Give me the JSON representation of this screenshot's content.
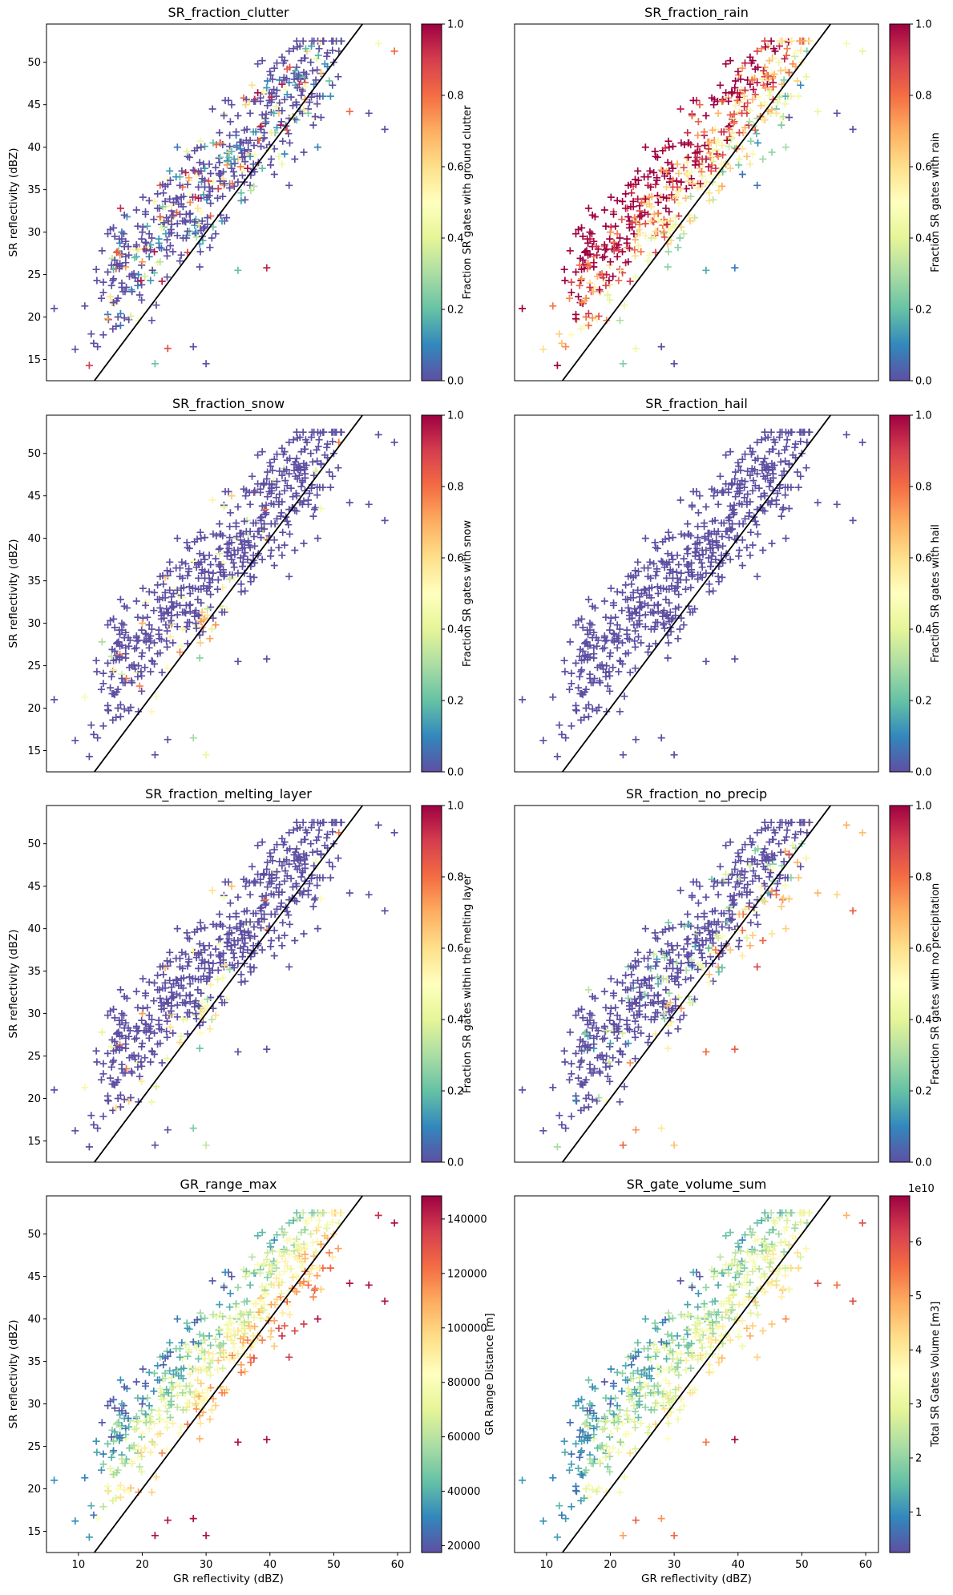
{
  "colormap": [
    "#5e4fa2",
    "#3288bd",
    "#66c2a5",
    "#abdda4",
    "#e6f598",
    "#ffffbf",
    "#fee08b",
    "#fdae61",
    "#f46d43",
    "#d53e4f",
    "#9e0142"
  ],
  "reference_line": {
    "x": [
      0,
      62
    ],
    "y": [
      0,
      62
    ],
    "color": "#000000"
  },
  "chart_data": [
    {
      "type": "scatter",
      "title": "SR_fraction_clutter",
      "xlabel": "",
      "ylabel": "SR reflectivity (dBZ)",
      "xlim": [
        5,
        62
      ],
      "ylim": [
        12.5,
        54.5
      ],
      "xticks": [],
      "xtick_labels": [],
      "yticks": [
        15,
        20,
        25,
        30,
        35,
        40,
        45,
        50
      ],
      "ytick_labels": [
        "15",
        "20",
        "25",
        "30",
        "35",
        "40",
        "45",
        "50"
      ],
      "marker": "+",
      "color_mode": "clutter",
      "colorbar": {
        "label": "Fraction SR gates with ground clutter",
        "vmin": 0,
        "vmax": 1,
        "ticks": [
          0,
          0.2,
          0.4,
          0.6,
          0.8,
          1.0
        ],
        "tick_labels": [
          "0.0",
          "0.2",
          "0.4",
          "0.6",
          "0.8",
          "1.0"
        ],
        "offset_text": ""
      }
    },
    {
      "type": "scatter",
      "title": "SR_fraction_rain",
      "xlabel": "",
      "ylabel": "",
      "xlim": [
        5,
        62
      ],
      "ylim": [
        12.5,
        54.5
      ],
      "xticks": [],
      "xtick_labels": [],
      "yticks": [],
      "ytick_labels": [],
      "marker": "+",
      "color_mode": "rain",
      "colorbar": {
        "label": "Fraction SR gates with rain",
        "vmin": 0,
        "vmax": 1,
        "ticks": [
          0,
          0.2,
          0.4,
          0.6,
          0.8,
          1.0
        ],
        "tick_labels": [
          "0.0",
          "0.2",
          "0.4",
          "0.6",
          "0.8",
          "1.0"
        ],
        "offset_text": ""
      }
    },
    {
      "type": "scatter",
      "title": "SR_fraction_snow",
      "xlabel": "",
      "ylabel": "SR reflectivity (dBZ)",
      "xlim": [
        5,
        62
      ],
      "ylim": [
        12.5,
        54.5
      ],
      "xticks": [],
      "xtick_labels": [],
      "yticks": [
        15,
        20,
        25,
        30,
        35,
        40,
        45,
        50
      ],
      "ytick_labels": [
        "15",
        "20",
        "25",
        "30",
        "35",
        "40",
        "45",
        "50"
      ],
      "marker": "+",
      "color_mode": "snow",
      "colorbar": {
        "label": "Fraction SR gates with snow",
        "vmin": 0,
        "vmax": 1,
        "ticks": [
          0,
          0.2,
          0.4,
          0.6,
          0.8,
          1.0
        ],
        "tick_labels": [
          "0.0",
          "0.2",
          "0.4",
          "0.6",
          "0.8",
          "1.0"
        ],
        "offset_text": ""
      }
    },
    {
      "type": "scatter",
      "title": "SR_fraction_hail",
      "xlabel": "",
      "ylabel": "",
      "xlim": [
        5,
        62
      ],
      "ylim": [
        12.5,
        54.5
      ],
      "xticks": [],
      "xtick_labels": [],
      "yticks": [],
      "ytick_labels": [],
      "marker": "+",
      "color_mode": "hail",
      "colorbar": {
        "label": "Fraction SR gates with hail",
        "vmin": 0,
        "vmax": 1,
        "ticks": [
          0,
          0.2,
          0.4,
          0.6,
          0.8,
          1.0
        ],
        "tick_labels": [
          "0.0",
          "0.2",
          "0.4",
          "0.6",
          "0.8",
          "1.0"
        ],
        "offset_text": ""
      }
    },
    {
      "type": "scatter",
      "title": "SR_fraction_melting_layer",
      "xlabel": "",
      "ylabel": "SR reflectivity (dBZ)",
      "xlim": [
        5,
        62
      ],
      "ylim": [
        12.5,
        54.5
      ],
      "xticks": [],
      "xtick_labels": [],
      "yticks": [
        15,
        20,
        25,
        30,
        35,
        40,
        45,
        50
      ],
      "ytick_labels": [
        "15",
        "20",
        "25",
        "30",
        "35",
        "40",
        "45",
        "50"
      ],
      "marker": "+",
      "color_mode": "melting",
      "colorbar": {
        "label": "Fraction SR gates within the melting layer",
        "vmin": 0,
        "vmax": 1,
        "ticks": [
          0,
          0.2,
          0.4,
          0.6,
          0.8,
          1.0
        ],
        "tick_labels": [
          "0.0",
          "0.2",
          "0.4",
          "0.6",
          "0.8",
          "1.0"
        ],
        "offset_text": ""
      }
    },
    {
      "type": "scatter",
      "title": "SR_fraction_no_precip",
      "xlabel": "",
      "ylabel": "",
      "xlim": [
        5,
        62
      ],
      "ylim": [
        12.5,
        54.5
      ],
      "xticks": [],
      "xtick_labels": [],
      "yticks": [],
      "ytick_labels": [],
      "marker": "+",
      "color_mode": "noprecip",
      "colorbar": {
        "label": "Fraction SR gates with no precipitation",
        "vmin": 0,
        "vmax": 1,
        "ticks": [
          0,
          0.2,
          0.4,
          0.6,
          0.8,
          1.0
        ],
        "tick_labels": [
          "0.0",
          "0.2",
          "0.4",
          "0.6",
          "0.8",
          "1.0"
        ],
        "offset_text": ""
      }
    },
    {
      "type": "scatter",
      "title": "GR_range_max",
      "xlabel": "GR reflectivity (dBZ)",
      "ylabel": "SR reflectivity (dBZ)",
      "xlim": [
        5,
        62
      ],
      "ylim": [
        12.5,
        54.5
      ],
      "xticks": [
        10,
        20,
        30,
        40,
        50,
        60
      ],
      "xtick_labels": [
        "10",
        "20",
        "30",
        "40",
        "50",
        "60"
      ],
      "yticks": [
        15,
        20,
        25,
        30,
        35,
        40,
        45,
        50
      ],
      "ytick_labels": [
        "15",
        "20",
        "25",
        "30",
        "35",
        "40",
        "45",
        "50"
      ],
      "marker": "+",
      "color_mode": "range",
      "colorbar": {
        "label": "GR Range Distance [m]",
        "vmin": 17500,
        "vmax": 148500,
        "ticks": [
          20000,
          40000,
          60000,
          80000,
          100000,
          120000,
          140000
        ],
        "tick_labels": [
          "20000",
          "40000",
          "60000",
          "80000",
          "100000",
          "120000",
          "140000"
        ],
        "offset_text": ""
      }
    },
    {
      "type": "scatter",
      "title": "SR_gate_volume_sum",
      "xlabel": "GR reflectivity (dBZ)",
      "ylabel": "",
      "xlim": [
        5,
        62
      ],
      "ylim": [
        12.5,
        54.5
      ],
      "xticks": [
        10,
        20,
        30,
        40,
        50,
        60
      ],
      "xtick_labels": [
        "10",
        "20",
        "30",
        "40",
        "50",
        "60"
      ],
      "yticks": [],
      "ytick_labels": [],
      "marker": "+",
      "color_mode": "volume",
      "colorbar": {
        "label": "Total SR Gates Volume [m3]",
        "vmin": 0.25,
        "vmax": 6.85,
        "ticks": [
          1,
          2,
          3,
          4,
          5,
          6
        ],
        "tick_labels": [
          "1",
          "2",
          "3",
          "4",
          "5",
          "6"
        ],
        "offset_text": "1e10"
      }
    }
  ]
}
